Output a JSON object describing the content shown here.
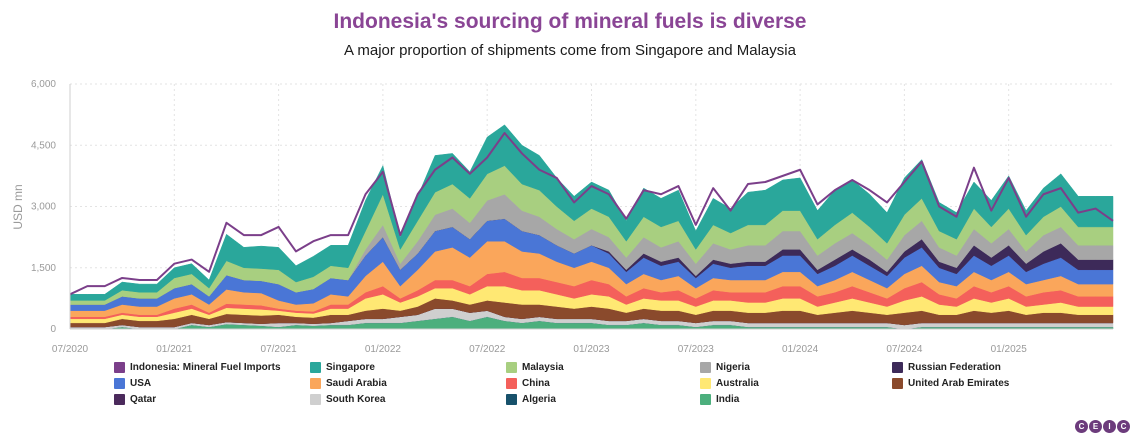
{
  "chart_data": {
    "type": "area",
    "title": "Indonesia's sourcing of mineral fuels is diverse",
    "subtitle": "A major proportion of shipments come from Singapore and Malaysia",
    "ylabel": "USD mn",
    "xlabel": "",
    "ylim": [
      0,
      6000
    ],
    "yticks": [
      "0",
      "1,500",
      "3,000",
      "4,500",
      "6,000"
    ],
    "xticks": [
      {
        "label": "07/2020",
        "index": 0
      },
      {
        "label": "01/2021",
        "index": 6
      },
      {
        "label": "07/2021",
        "index": 12
      },
      {
        "label": "01/2022",
        "index": 18
      },
      {
        "label": "07/2022",
        "index": 24
      },
      {
        "label": "01/2023",
        "index": 30
      },
      {
        "label": "07/2023",
        "index": 36
      },
      {
        "label": "01/2024",
        "index": 42
      },
      {
        "label": "07/2024",
        "index": 48
      },
      {
        "label": "01/2025",
        "index": 54
      }
    ],
    "x_start": "06/2020",
    "grid": true,
    "total": {
      "name": "Indonesia: Mineral Fuel Imports",
      "color": "#7b3f8a",
      "values": [
        850,
        1050,
        1050,
        1250,
        1200,
        1200,
        1600,
        1700,
        1400,
        2600,
        2300,
        2300,
        2500,
        1900,
        2150,
        2300,
        2300,
        3300,
        3850,
        2300,
        3300,
        3900,
        4200,
        3800,
        4200,
        4800,
        4300,
        3900,
        3700,
        3100,
        3500,
        3300,
        2700,
        3400,
        3300,
        3500,
        2550,
        3450,
        2900,
        3550,
        3600,
        3750,
        3900,
        3050,
        3400,
        3650,
        3400,
        3100,
        3600,
        4100,
        3000,
        2750,
        3950,
        2900,
        3700,
        2750,
        3300,
        3450,
        2850,
        2950,
        2650
      ]
    },
    "series": [
      {
        "name": "India",
        "color": "#4caf7d",
        "values": [
          0,
          0,
          0,
          50,
          0,
          0,
          0,
          100,
          50,
          120,
          100,
          80,
          50,
          100,
          80,
          100,
          100,
          150,
          150,
          150,
          200,
          250,
          300,
          200,
          300,
          200,
          150,
          200,
          150,
          150,
          150,
          100,
          100,
          150,
          100,
          100,
          50,
          100,
          100,
          50,
          50,
          50,
          50,
          50,
          50,
          50,
          50,
          50,
          0,
          50,
          50,
          50,
          50,
          50,
          50,
          50,
          50,
          50,
          50,
          50,
          50
        ]
      },
      {
        "name": "Algeria",
        "color": "#17516b",
        "values": [
          0,
          0,
          0,
          0,
          0,
          0,
          0,
          0,
          0,
          0,
          0,
          0,
          0,
          0,
          0,
          0,
          0,
          0,
          0,
          0,
          0,
          0,
          0,
          0,
          0,
          0,
          0,
          0,
          0,
          0,
          0,
          0,
          0,
          0,
          0,
          0,
          0,
          0,
          0,
          0,
          0,
          0,
          0,
          0,
          0,
          0,
          0,
          0,
          0,
          0,
          0,
          0,
          0,
          0,
          0,
          0,
          0,
          0,
          0,
          0,
          0
        ]
      },
      {
        "name": "South Korea",
        "color": "#cfcfcf",
        "values": [
          50,
          50,
          50,
          50,
          50,
          50,
          50,
          50,
          50,
          50,
          50,
          50,
          100,
          50,
          50,
          50,
          100,
          100,
          100,
          150,
          150,
          250,
          200,
          200,
          150,
          100,
          100,
          100,
          100,
          100,
          100,
          100,
          100,
          100,
          100,
          100,
          100,
          100,
          100,
          100,
          100,
          100,
          100,
          100,
          100,
          100,
          100,
          100,
          100,
          100,
          100,
          100,
          100,
          100,
          100,
          100,
          100,
          100,
          100,
          100,
          100
        ]
      },
      {
        "name": "Qatar",
        "color": "#4b2a5c",
        "values": [
          0,
          0,
          0,
          0,
          0,
          0,
          0,
          0,
          0,
          0,
          0,
          0,
          0,
          0,
          0,
          0,
          0,
          0,
          0,
          0,
          0,
          0,
          0,
          0,
          0,
          0,
          0,
          0,
          0,
          0,
          0,
          0,
          0,
          0,
          0,
          0,
          0,
          0,
          0,
          0,
          0,
          0,
          0,
          0,
          0,
          0,
          0,
          0,
          0,
          0,
          0,
          0,
          0,
          0,
          0,
          0,
          0,
          0,
          0,
          0,
          0
        ]
      },
      {
        "name": "United Arab Emirates",
        "color": "#8a4a2c",
        "values": [
          100,
          100,
          100,
          150,
          150,
          150,
          200,
          200,
          150,
          200,
          200,
          200,
          200,
          150,
          150,
          200,
          150,
          200,
          250,
          150,
          200,
          250,
          200,
          200,
          250,
          350,
          350,
          300,
          300,
          250,
          300,
          300,
          200,
          250,
          250,
          250,
          200,
          250,
          250,
          250,
          250,
          300,
          300,
          200,
          250,
          300,
          250,
          200,
          300,
          300,
          200,
          200,
          300,
          250,
          300,
          200,
          250,
          250,
          200,
          200,
          200
        ]
      },
      {
        "name": "Australia",
        "color": "#ffe873",
        "values": [
          100,
          100,
          100,
          100,
          100,
          100,
          150,
          150,
          100,
          150,
          150,
          150,
          100,
          100,
          100,
          150,
          150,
          300,
          350,
          200,
          250,
          250,
          300,
          250,
          350,
          400,
          350,
          350,
          300,
          250,
          300,
          300,
          200,
          250,
          250,
          250,
          200,
          250,
          250,
          250,
          250,
          300,
          300,
          200,
          250,
          300,
          250,
          200,
          300,
          350,
          250,
          200,
          300,
          250,
          300,
          200,
          200,
          250,
          200,
          200,
          200
        ]
      },
      {
        "name": "China",
        "color": "#f4605b",
        "values": [
          50,
          50,
          50,
          50,
          50,
          50,
          100,
          100,
          50,
          100,
          100,
          100,
          50,
          50,
          50,
          100,
          100,
          150,
          200,
          100,
          150,
          200,
          200,
          200,
          300,
          350,
          300,
          300,
          300,
          300,
          350,
          300,
          200,
          250,
          200,
          250,
          200,
          250,
          200,
          250,
          250,
          300,
          300,
          250,
          250,
          300,
          250,
          200,
          300,
          350,
          250,
          200,
          300,
          250,
          300,
          250,
          300,
          300,
          250,
          250,
          250
        ]
      },
      {
        "name": "Saudi Arabia",
        "color": "#faa65b",
        "values": [
          150,
          150,
          150,
          200,
          200,
          200,
          250,
          250,
          200,
          350,
          300,
          300,
          200,
          150,
          200,
          250,
          200,
          400,
          600,
          300,
          500,
          700,
          800,
          700,
          800,
          750,
          650,
          600,
          500,
          450,
          450,
          400,
          300,
          350,
          300,
          350,
          250,
          300,
          300,
          300,
          300,
          350,
          350,
          250,
          300,
          350,
          300,
          250,
          350,
          400,
          300,
          300,
          350,
          300,
          350,
          300,
          300,
          350,
          300,
          300,
          300
        ]
      },
      {
        "name": "USA",
        "color": "#4a76d6",
        "values": [
          150,
          150,
          150,
          200,
          200,
          200,
          250,
          250,
          200,
          350,
          300,
          300,
          400,
          300,
          350,
          400,
          400,
          500,
          600,
          400,
          400,
          500,
          500,
          450,
          500,
          550,
          500,
          450,
          400,
          350,
          400,
          350,
          300,
          400,
          350,
          350,
          250,
          350,
          300,
          350,
          350,
          400,
          400,
          300,
          350,
          400,
          350,
          300,
          400,
          450,
          350,
          300,
          400,
          350,
          400,
          300,
          400,
          450,
          350,
          350,
          350
        ]
      },
      {
        "name": "Russian Federation",
        "color": "#3d2a59",
        "values": [
          0,
          0,
          0,
          0,
          0,
          0,
          0,
          0,
          0,
          0,
          0,
          0,
          0,
          0,
          0,
          0,
          0,
          0,
          0,
          0,
          0,
          0,
          0,
          0,
          0,
          0,
          0,
          0,
          0,
          0,
          0,
          50,
          50,
          100,
          100,
          100,
          50,
          100,
          100,
          100,
          100,
          150,
          150,
          100,
          150,
          150,
          150,
          100,
          150,
          200,
          150,
          150,
          250,
          200,
          250,
          200,
          300,
          350,
          250,
          250,
          250
        ]
      },
      {
        "name": "Nigeria",
        "color": "#a7a7a7",
        "values": [
          0,
          0,
          0,
          0,
          0,
          0,
          0,
          0,
          0,
          0,
          0,
          0,
          0,
          0,
          0,
          0,
          0,
          150,
          300,
          150,
          300,
          400,
          450,
          400,
          500,
          600,
          500,
          450,
          400,
          350,
          400,
          350,
          300,
          400,
          350,
          400,
          300,
          400,
          350,
          400,
          400,
          450,
          450,
          350,
          400,
          400,
          350,
          300,
          400,
          450,
          350,
          300,
          400,
          350,
          400,
          300,
          400,
          400,
          350,
          350,
          350
        ]
      },
      {
        "name": "Malaysia",
        "color": "#a8cf80",
        "values": [
          100,
          100,
          100,
          150,
          150,
          150,
          250,
          250,
          200,
          350,
          300,
          300,
          350,
          250,
          300,
          300,
          300,
          450,
          750,
          350,
          500,
          550,
          600,
          600,
          650,
          700,
          650,
          650,
          550,
          450,
          500,
          500,
          400,
          500,
          500,
          500,
          350,
          450,
          400,
          500,
          500,
          500,
          500,
          400,
          450,
          500,
          450,
          400,
          500,
          550,
          400,
          400,
          500,
          400,
          500,
          400,
          450,
          500,
          450,
          450,
          450
        ]
      },
      {
        "name": "Singapore",
        "color": "#2aa79b",
        "values": [
          150,
          150,
          150,
          200,
          200,
          200,
          250,
          250,
          200,
          650,
          500,
          550,
          550,
          400,
          500,
          500,
          550,
          750,
          700,
          300,
          600,
          900,
          750,
          650,
          900,
          1000,
          950,
          850,
          700,
          600,
          650,
          650,
          500,
          700,
          700,
          750,
          450,
          650,
          600,
          800,
          850,
          750,
          800,
          700,
          850,
          800,
          800,
          750,
          900,
          950,
          700,
          650,
          650,
          650,
          800,
          600,
          700,
          800,
          750,
          750,
          750
        ]
      }
    ]
  },
  "legend": [
    {
      "label": "Indonesia: Mineral Fuel Imports",
      "color": "#7b3f8a"
    },
    {
      "label": "Singapore",
      "color": "#2aa79b"
    },
    {
      "label": "Malaysia",
      "color": "#a8cf80"
    },
    {
      "label": "Nigeria",
      "color": "#a7a7a7"
    },
    {
      "label": "Russian Federation",
      "color": "#3d2a59"
    },
    {
      "label": "USA",
      "color": "#4a76d6"
    },
    {
      "label": "Saudi Arabia",
      "color": "#faa65b"
    },
    {
      "label": "China",
      "color": "#f4605b"
    },
    {
      "label": "Australia",
      "color": "#ffe873"
    },
    {
      "label": "United Arab Emirates",
      "color": "#8a4a2c"
    },
    {
      "label": "Qatar",
      "color": "#4b2a5c"
    },
    {
      "label": "South Korea",
      "color": "#cfcfcf"
    },
    {
      "label": "Algeria",
      "color": "#17516b"
    },
    {
      "label": "India",
      "color": "#4caf7d"
    }
  ],
  "logo": [
    "C",
    "E",
    "I",
    "C"
  ]
}
